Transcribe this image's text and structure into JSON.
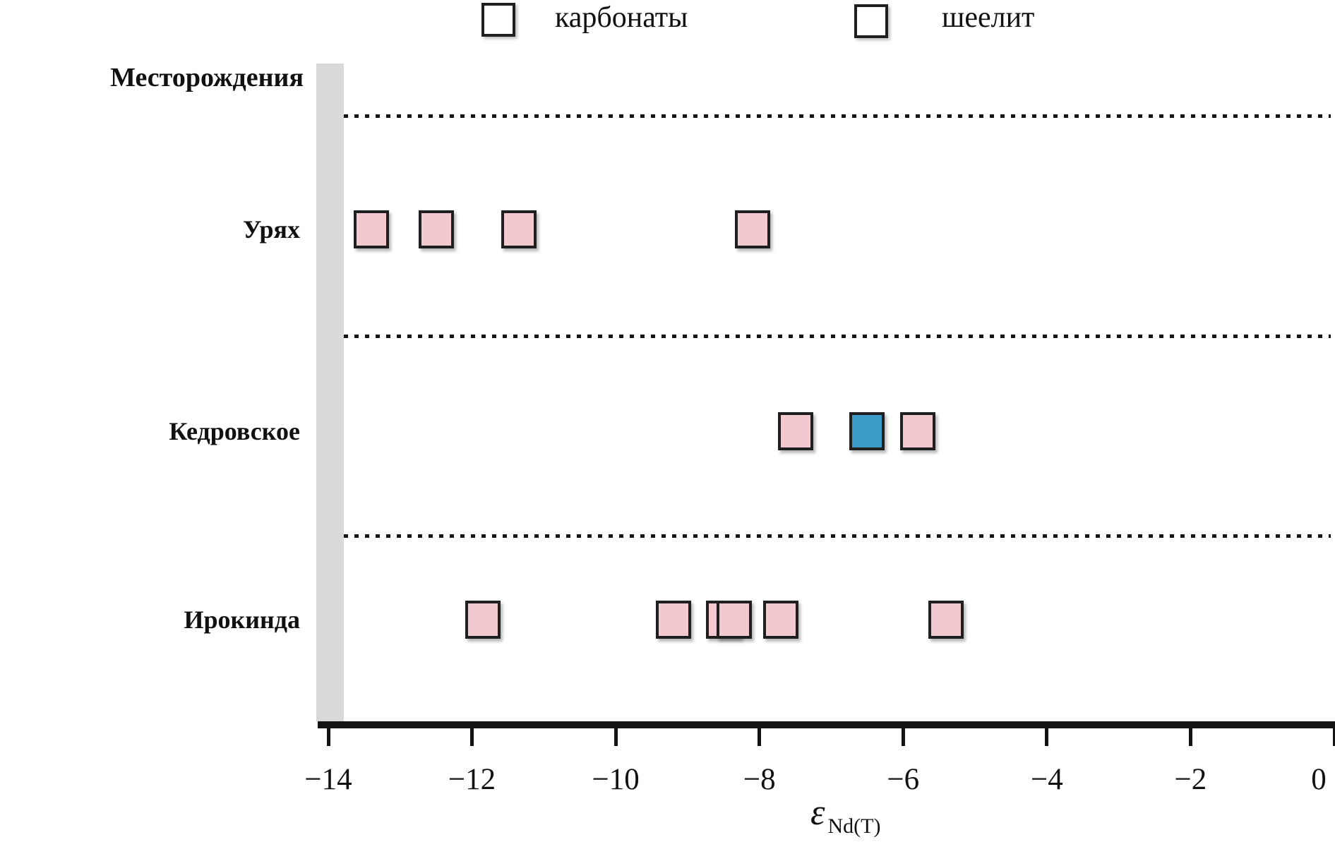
{
  "header": {
    "y_axis_title": "Месторождения"
  },
  "legend": {
    "items": [
      {
        "label": "карбонаты",
        "color": "#f2c9ce"
      },
      {
        "label": "шеелит",
        "color": "#3d9bc8"
      }
    ]
  },
  "axis": {
    "title_symbol": "ε",
    "title_subscript": "Nd(T)"
  },
  "colors": {
    "carbonate_fill": "#f2c9ce",
    "scheelite_fill": "#3d9bc8",
    "marker_border": "#1f1f1f",
    "band_gray": "#d9d9d9",
    "axis_black": "#131313"
  },
  "chart_data": {
    "type": "scatter",
    "title": "",
    "xlabel": "εNd(T)",
    "ylabel": "Месторождения",
    "xlim": [
      -14,
      0
    ],
    "xticks": [
      -14,
      -12,
      -10,
      -8,
      -6,
      -4,
      -2,
      0
    ],
    "xtick_labels": [
      "−14",
      "−12",
      "−10",
      "−8",
      "−6",
      "−4",
      "−2",
      "0"
    ],
    "legend_position": "top",
    "grid": "dotted horizontal separators between category rows",
    "categories": [
      "Урях",
      "Кедровское",
      "Ирокинда"
    ],
    "series": [
      {
        "name": "карбонаты",
        "color": "#f2c9ce",
        "points": [
          {
            "category": "Урях",
            "x": -13.4
          },
          {
            "category": "Урях",
            "x": -12.5
          },
          {
            "category": "Урях",
            "x": -11.35
          },
          {
            "category": "Урях",
            "x": -8.1
          },
          {
            "category": "Кедровское",
            "x": -7.5
          },
          {
            "category": "Кедровское",
            "x": -5.8
          },
          {
            "category": "Ирокинда",
            "x": -11.85
          },
          {
            "category": "Ирокинда",
            "x": -9.2
          },
          {
            "category": "Ирокинда",
            "x": -8.5
          },
          {
            "category": "Ирокинда",
            "x": -8.35
          },
          {
            "category": "Ирокинда",
            "x": -7.7
          },
          {
            "category": "Ирокинда",
            "x": -5.4
          }
        ]
      },
      {
        "name": "шеелит",
        "color": "#3d9bc8",
        "points": [
          {
            "category": "Кедровское",
            "x": -6.5
          }
        ]
      }
    ]
  }
}
